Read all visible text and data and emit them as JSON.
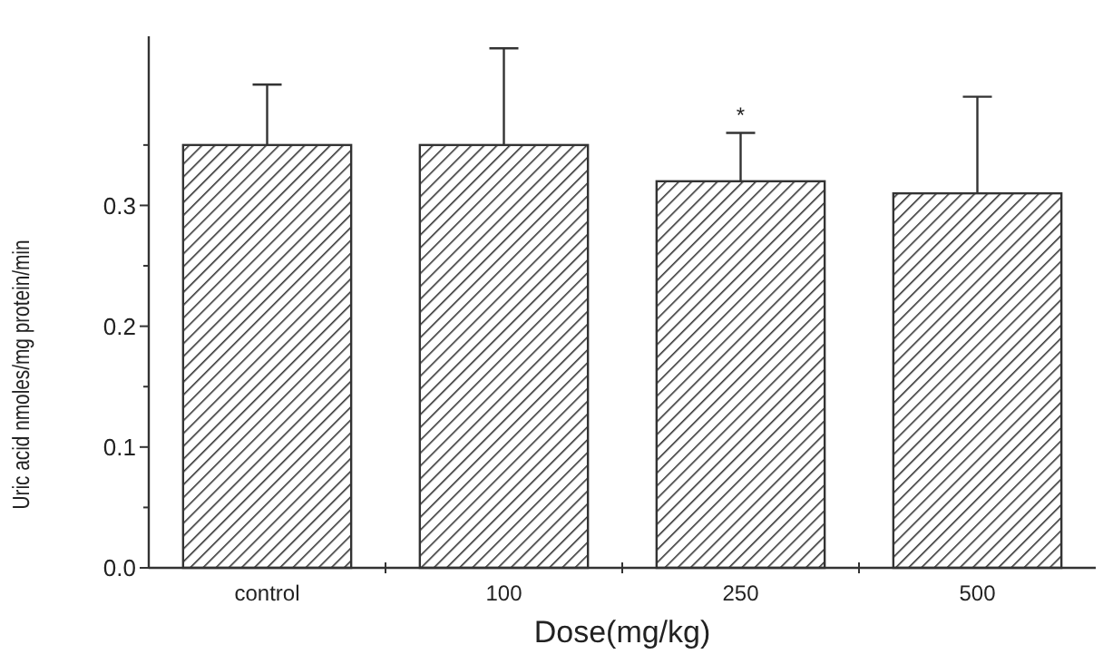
{
  "chart_data": {
    "type": "bar",
    "xlabel": "Dose(mg/kg)",
    "ylabel": "Uric acid nmoles/mg protein/min",
    "categories": [
      "control",
      "100",
      "250",
      "500"
    ],
    "values": [
      0.35,
      0.35,
      0.32,
      0.31
    ],
    "errors": [
      [
        0.35,
        0.4
      ],
      [
        0.35,
        0.43
      ],
      [
        0.32,
        0.36
      ],
      [
        0.31,
        0.39
      ]
    ],
    "color": "#333333",
    "ylim": [
      0,
      0.44
    ],
    "yticks": [
      {
        "value": 0,
        "label": "0.0"
      },
      {
        "value": 0.05,
        "label": null
      },
      {
        "value": 0.1,
        "label": "0.1"
      },
      {
        "value": 0.15,
        "label": null
      },
      {
        "value": 0.2,
        "label": "0.2"
      },
      {
        "value": 0.25,
        "label": null
      },
      {
        "value": 0.3,
        "label": "0.3"
      },
      {
        "value": 0.35,
        "label": null
      }
    ],
    "annotations": [
      {
        "text": "*",
        "x": "250",
        "y": 0.36
      }
    ],
    "grid": false
  }
}
